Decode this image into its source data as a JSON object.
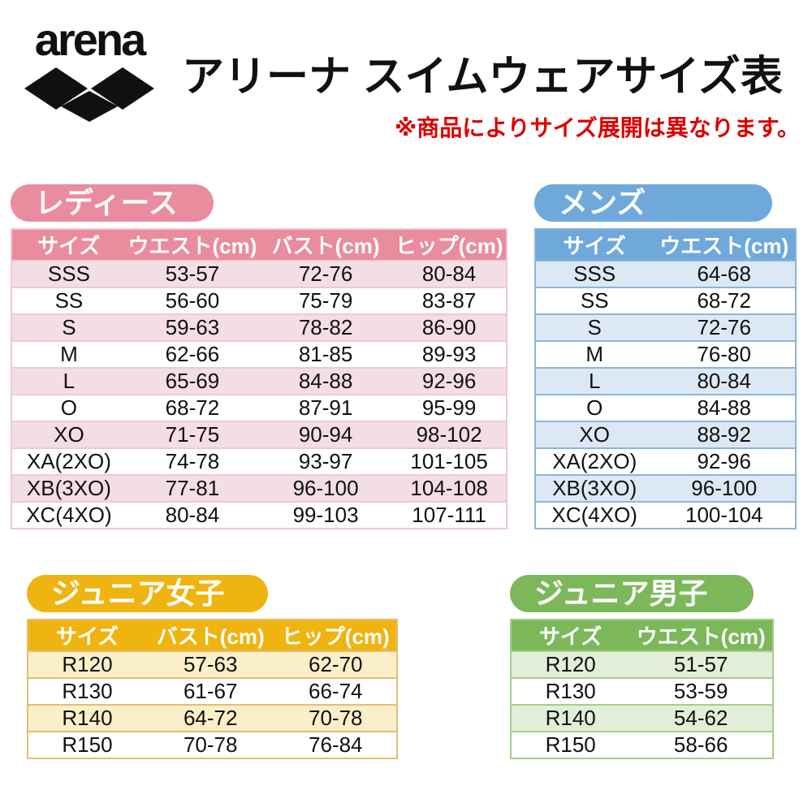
{
  "header": {
    "logo_text": "arena",
    "title": "アリーナ スイムウェアサイズ表",
    "note": "※商品によりサイズ展開は異なります。",
    "note_color": "#dd0000",
    "logo_color": "#101010"
  },
  "tables": {
    "ladies": {
      "label": "レディース",
      "columns": [
        "サイズ",
        "ウエスト(cm)",
        "バスト(cm)",
        "ヒップ(cm)"
      ],
      "rows": [
        [
          "SSS",
          "53-57",
          "72-76",
          "80-84"
        ],
        [
          "SS",
          "56-60",
          "75-79",
          "83-87"
        ],
        [
          "S",
          "59-63",
          "78-82",
          "86-90"
        ],
        [
          "M",
          "62-66",
          "81-85",
          "89-93"
        ],
        [
          "L",
          "65-69",
          "84-88",
          "92-96"
        ],
        [
          "O",
          "68-72",
          "87-91",
          "95-99"
        ],
        [
          "XO",
          "71-75",
          "90-94",
          "98-102"
        ],
        [
          "XA(2XO)",
          "74-78",
          "93-97",
          "101-105"
        ],
        [
          "XB(3XO)",
          "77-81",
          "96-100",
          "104-108"
        ],
        [
          "XC(4XO)",
          "80-84",
          "99-103",
          "107-111"
        ]
      ],
      "colors": {
        "accent": "#E98C9E",
        "row_alt": "#F3DEE5",
        "border": "#ECCAD3"
      }
    },
    "mens": {
      "label": "メンズ",
      "columns": [
        "サイズ",
        "ウエスト(cm)"
      ],
      "rows": [
        [
          "SSS",
          "64-68"
        ],
        [
          "SS",
          "68-72"
        ],
        [
          "S",
          "72-76"
        ],
        [
          "M",
          "76-80"
        ],
        [
          "L",
          "80-84"
        ],
        [
          "O",
          "84-88"
        ],
        [
          "XO",
          "88-92"
        ],
        [
          "XA(2XO)",
          "92-96"
        ],
        [
          "XB(3XO)",
          "96-100"
        ],
        [
          "XC(4XO)",
          "100-104"
        ]
      ],
      "colors": {
        "accent": "#6FA9DC",
        "row_alt": "#DCE9F5",
        "border": "#8FB4D6"
      }
    },
    "junior_girls": {
      "label": "ジュニア女子",
      "columns": [
        "サイズ",
        "バスト(cm)",
        "ヒップ(cm)"
      ],
      "rows": [
        [
          "R120",
          "57-63",
          "62-70"
        ],
        [
          "R130",
          "61-67",
          "66-74"
        ],
        [
          "R140",
          "64-72",
          "70-78"
        ],
        [
          "R150",
          "70-78",
          "76-84"
        ]
      ],
      "colors": {
        "accent": "#EFB410",
        "row_alt": "#FBEFC9",
        "border": "#E3BE74"
      }
    },
    "junior_boys": {
      "label": "ジュニア男子",
      "columns": [
        "サイズ",
        "ウエスト(cm)"
      ],
      "rows": [
        [
          "R120",
          "51-57"
        ],
        [
          "R130",
          "53-59"
        ],
        [
          "R140",
          "54-62"
        ],
        [
          "R150",
          "58-66"
        ]
      ],
      "colors": {
        "accent": "#7CB85A",
        "row_alt": "#E2EFD8",
        "border": "#A5CD8C"
      }
    }
  }
}
